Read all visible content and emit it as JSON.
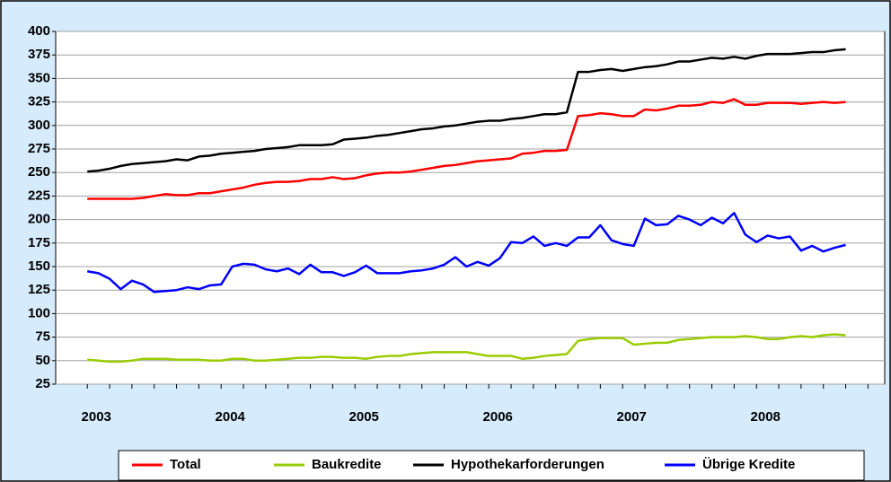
{
  "chart_data": {
    "type": "line",
    "categories": [
      "2003",
      null,
      null,
      null,
      null,
      null,
      null,
      null,
      null,
      null,
      null,
      null,
      "2004",
      null,
      null,
      null,
      null,
      null,
      null,
      null,
      null,
      null,
      null,
      null,
      "2005",
      null,
      null,
      null,
      null,
      null,
      null,
      null,
      null,
      null,
      null,
      null,
      "2006",
      null,
      null,
      null,
      null,
      null,
      null,
      null,
      null,
      null,
      null,
      null,
      "2007",
      null,
      null,
      null,
      null,
      null,
      null,
      null,
      null,
      null,
      null,
      null,
      "2008",
      null,
      null,
      null,
      null,
      null,
      null,
      null,
      null,
      null,
      null,
      null
    ],
    "series": [
      {
        "name": "Total",
        "color": "#ff0000",
        "values": [
          222,
          222,
          222,
          222,
          222,
          223,
          225,
          227,
          226,
          226,
          228,
          228,
          230,
          232,
          234,
          237,
          239,
          240,
          240,
          241,
          243,
          243,
          245,
          243,
          244,
          247,
          249,
          250,
          250,
          251,
          253,
          255,
          257,
          258,
          260,
          262,
          263,
          264,
          265,
          270,
          271,
          273,
          273,
          274,
          310,
          311,
          313,
          312,
          310,
          310,
          317,
          316,
          318,
          321,
          321,
          322,
          325,
          324,
          328,
          322,
          322,
          324,
          324,
          324,
          323,
          324,
          325,
          324,
          325,
          null,
          null,
          null
        ]
      },
      {
        "name": "Baukredite",
        "color": "#99cc00",
        "values": [
          51,
          50,
          49,
          49,
          50,
          52,
          52,
          52,
          51,
          51,
          51,
          50,
          50,
          52,
          52,
          50,
          50,
          51,
          52,
          53,
          53,
          54,
          54,
          53,
          53,
          52,
          54,
          55,
          55,
          57,
          58,
          59,
          59,
          59,
          59,
          57,
          55,
          55,
          55,
          52,
          53,
          55,
          56,
          57,
          71,
          73,
          74,
          74,
          74,
          67,
          68,
          69,
          69,
          72,
          73,
          74,
          75,
          75,
          75,
          76,
          75,
          73,
          73,
          75,
          76,
          75,
          77,
          78,
          77,
          null,
          null,
          null
        ]
      },
      {
        "name": "Hypothekarforderungen",
        "color": "#000000",
        "values": [
          251,
          252,
          254,
          257,
          259,
          260,
          261,
          262,
          264,
          263,
          267,
          268,
          270,
          271,
          272,
          273,
          275,
          276,
          277,
          279,
          279,
          279,
          280,
          285,
          286,
          287,
          289,
          290,
          292,
          294,
          296,
          297,
          299,
          300,
          302,
          304,
          305,
          305,
          307,
          308,
          310,
          312,
          312,
          314,
          357,
          357,
          359,
          360,
          358,
          360,
          362,
          363,
          365,
          368,
          368,
          370,
          372,
          371,
          373,
          371,
          374,
          376,
          376,
          376,
          377,
          378,
          378,
          380,
          381,
          null,
          null,
          null
        ]
      },
      {
        "name": "Übrige Kredite",
        "color": "#0000ff",
        "values": [
          145,
          143,
          137,
          126,
          135,
          131,
          123,
          124,
          125,
          128,
          126,
          130,
          131,
          150,
          153,
          152,
          147,
          145,
          148,
          142,
          152,
          144,
          144,
          140,
          144,
          151,
          143,
          143,
          143,
          145,
          146,
          148,
          152,
          160,
          150,
          155,
          151,
          159,
          176,
          175,
          182,
          172,
          175,
          172,
          181,
          181,
          194,
          178,
          174,
          172,
          201,
          194,
          195,
          204,
          200,
          194,
          202,
          196,
          207,
          184,
          176,
          183,
          180,
          182,
          167,
          172,
          166,
          170,
          173,
          null,
          null,
          null
        ]
      }
    ],
    "ylim": [
      25,
      400
    ],
    "yticks": [
      25,
      50,
      75,
      100,
      125,
      150,
      175,
      200,
      225,
      250,
      275,
      300,
      325,
      350,
      375,
      400
    ],
    "grid": true
  }
}
